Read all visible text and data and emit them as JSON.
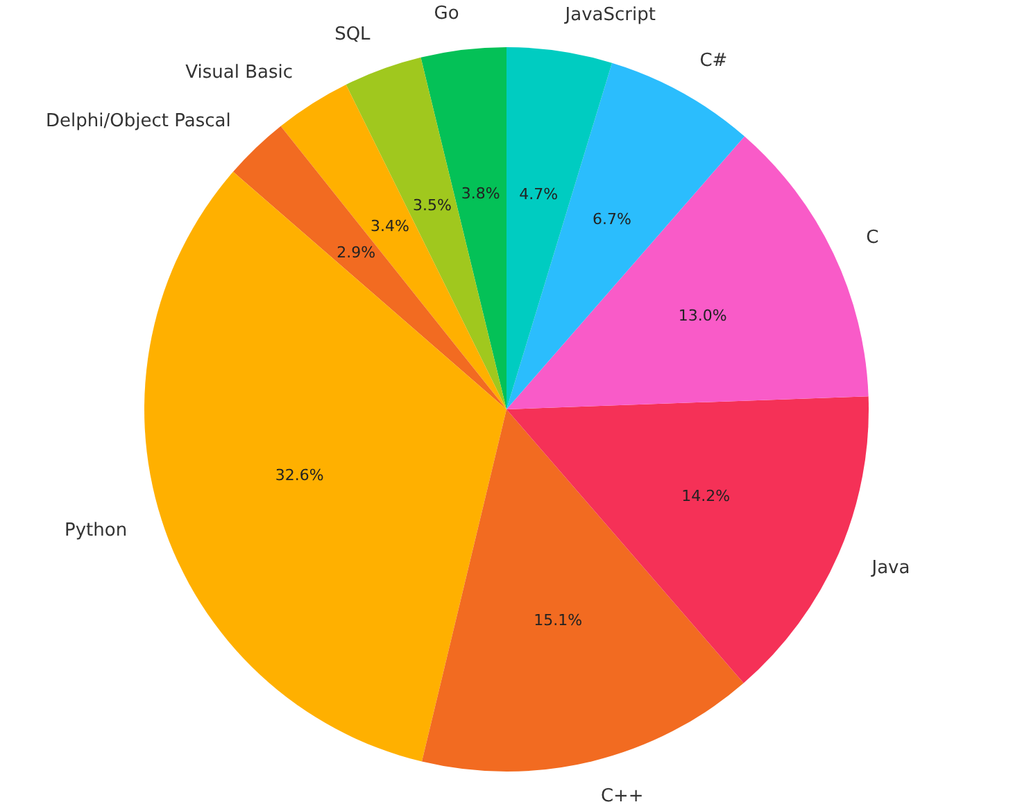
{
  "chart_data": {
    "type": "pie",
    "categories": [
      "Go",
      "SQL",
      "Visual Basic",
      "Delphi/Object Pascal",
      "Python",
      "C++",
      "Java",
      "C",
      "C#",
      "JavaScript"
    ],
    "values": [
      3.8,
      3.5,
      3.4,
      2.9,
      32.6,
      15.1,
      14.2,
      13.0,
      6.7,
      4.7
    ],
    "value_labels": [
      "3.8%",
      "3.5%",
      "3.4%",
      "2.9%",
      "32.6%",
      "15.1%",
      "14.2%",
      "13.0%",
      "6.7%",
      "4.7%"
    ],
    "colors": [
      "#04c157",
      "#a0c81e",
      "#ffb000",
      "#f26b21",
      "#ffb000",
      "#f26b21",
      "#f53157",
      "#f95bc8",
      "#2bbdfd",
      "#00ccc1"
    ]
  }
}
